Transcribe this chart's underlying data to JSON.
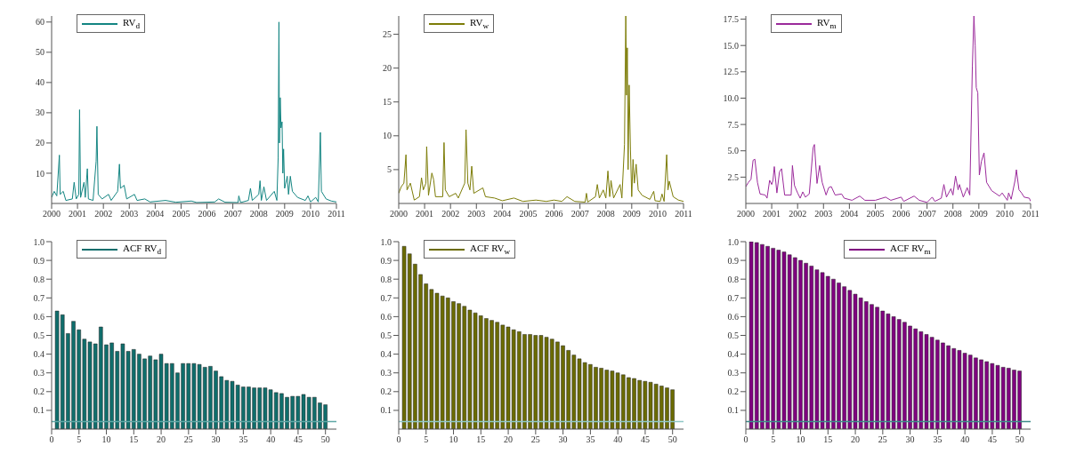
{
  "chart_data": [
    {
      "type": "line",
      "legend": "top left",
      "xlim": [
        2000,
        2011
      ],
      "xticks": [
        2000,
        2001,
        2002,
        2003,
        2004,
        2005,
        2006,
        2007,
        2008,
        2009,
        2010,
        2011
      ],
      "ylim": [
        0,
        62
      ],
      "yticks": [
        10,
        20,
        30,
        40,
        50,
        60
      ],
      "series": [
        {
          "name": "RV$_{d}$",
          "color": "#138582",
          "x": [
            2000.0,
            2000.1,
            2000.2,
            2000.3,
            2000.33,
            2000.45,
            2000.55,
            2000.8,
            2000.87,
            2000.95,
            2001.05,
            2001.08,
            2001.12,
            2001.25,
            2001.3,
            2001.38,
            2001.42,
            2001.6,
            2001.72,
            2001.75,
            2001.8,
            2001.95,
            2002.2,
            2002.3,
            2002.55,
            2002.62,
            2002.66,
            2002.8,
            2002.9,
            2003.2,
            2003.3,
            2003.6,
            2003.8,
            2004.4,
            2004.8,
            2005.4,
            2005.6,
            2006.3,
            2006.45,
            2006.7,
            2007.2,
            2007.23,
            2007.3,
            2007.6,
            2007.68,
            2007.75,
            2008.0,
            2008.05,
            2008.1,
            2008.2,
            2008.3,
            2008.6,
            2008.7,
            2008.75,
            2008.78,
            2008.8,
            2008.83,
            2008.86,
            2008.9,
            2008.93,
            2008.96,
            2009.0,
            2009.1,
            2009.15,
            2009.22,
            2009.3,
            2009.5,
            2009.8,
            2009.9,
            2010.0,
            2010.2,
            2010.3,
            2010.38,
            2010.42,
            2010.6,
            2010.8,
            2011.0
          ],
          "values": [
            2,
            4,
            2.5,
            16,
            3,
            4,
            1,
            1.5,
            7,
            1.5,
            3,
            31,
            2,
            7,
            2,
            11.5,
            1.5,
            1,
            14,
            25.5,
            3,
            1.5,
            3,
            1,
            4,
            13,
            5,
            6,
            1.5,
            3,
            1,
            1.5,
            0.5,
            1,
            0.4,
            0.8,
            0.3,
            0.5,
            1.5,
            0.4,
            0.3,
            2.5,
            0.3,
            1,
            5,
            1,
            3,
            7.5,
            1,
            5.5,
            1,
            4,
            1,
            15,
            60,
            20,
            35,
            25,
            27,
            10,
            18,
            5,
            9,
            3,
            9,
            4,
            2,
            1,
            2.5,
            0.5,
            2,
            0.5,
            23.5,
            4,
            1.5,
            0.8,
            0.5
          ]
        }
      ]
    },
    {
      "type": "line",
      "legend": "top left",
      "xlim": [
        2000,
        2011
      ],
      "xticks": [
        2000,
        2001,
        2002,
        2003,
        2004,
        2005,
        2006,
        2007,
        2008,
        2009,
        2010,
        2011
      ],
      "ylim": [
        0,
        27.7
      ],
      "yticks": [
        5,
        10,
        15,
        20,
        25
      ],
      "series": [
        {
          "name": "RV$_{w}$",
          "color": "#7d7d08",
          "x": [
            2000.0,
            2000.1,
            2000.2,
            2000.28,
            2000.32,
            2000.45,
            2000.6,
            2000.8,
            2000.88,
            2000.95,
            2001.05,
            2001.08,
            2001.15,
            2001.28,
            2001.35,
            2001.42,
            2001.7,
            2001.75,
            2001.8,
            2001.95,
            2002.2,
            2002.3,
            2002.55,
            2002.6,
            2002.67,
            2002.75,
            2002.82,
            2002.9,
            2003.25,
            2003.35,
            2003.7,
            2004.0,
            2004.45,
            2004.8,
            2005.3,
            2005.7,
            2006.0,
            2006.3,
            2006.5,
            2006.8,
            2007.2,
            2007.25,
            2007.3,
            2007.6,
            2007.67,
            2007.75,
            2007.9,
            2008.0,
            2008.08,
            2008.15,
            2008.2,
            2008.3,
            2008.55,
            2008.62,
            2008.72,
            2008.77,
            2008.8,
            2008.83,
            2008.86,
            2008.9,
            2008.95,
            2009.0,
            2009.05,
            2009.1,
            2009.17,
            2009.25,
            2009.4,
            2009.7,
            2009.85,
            2009.9,
            2010.1,
            2010.17,
            2010.25,
            2010.35,
            2010.4,
            2010.45,
            2010.6,
            2010.8,
            2011.0
          ],
          "values": [
            1.5,
            2.5,
            3,
            7.2,
            2,
            3,
            0.5,
            1,
            3.8,
            2,
            3,
            8.4,
            1.2,
            4.5,
            3.5,
            1,
            1,
            9,
            2,
            1,
            1.5,
            0.8,
            3,
            10.9,
            3,
            2,
            5.5,
            1.5,
            2.3,
            1,
            0.8,
            0.4,
            0.8,
            0.3,
            0.5,
            0.3,
            0.5,
            0.3,
            1,
            0.3,
            0.2,
            1.5,
            0.2,
            1,
            2.8,
            0.8,
            2,
            0.8,
            4.8,
            1,
            3.4,
            0.8,
            2.8,
            0.8,
            8.7,
            27.7,
            16,
            23,
            5,
            17.5,
            8,
            1,
            6.5,
            3,
            5.8,
            2,
            1.2,
            0.6,
            1.8,
            0.4,
            0.3,
            1.4,
            0.3,
            7.2,
            2,
            3.3,
            1,
            0.5,
            0.3
          ]
        }
      ]
    },
    {
      "type": "line",
      "legend": "top left",
      "xlim": [
        2000,
        2011
      ],
      "xticks": [
        2000,
        2001,
        2002,
        2003,
        2004,
        2005,
        2006,
        2007,
        2008,
        2009,
        2010,
        2011
      ],
      "ylim": [
        0,
        17.8
      ],
      "yticks": [
        2.5,
        {
          "value": 5,
          "label": "5.0"
        },
        7.5,
        {
          "value": 10,
          "label": "10.0"
        },
        12.5,
        {
          "value": 15,
          "label": "15.0"
        },
        17.5
      ],
      "series": [
        {
          "name": "RV$_{m}$",
          "color": "#9b2a9b",
          "x": [
            2000.0,
            2000.1,
            2000.2,
            2000.28,
            2000.35,
            2000.45,
            2000.55,
            2000.75,
            2000.82,
            2000.92,
            2001.0,
            2001.05,
            2001.1,
            2001.2,
            2001.3,
            2001.38,
            2001.5,
            2001.75,
            2001.8,
            2001.88,
            2002.0,
            2002.1,
            2002.2,
            2002.3,
            2002.45,
            2002.6,
            2002.65,
            2002.75,
            2002.85,
            2002.95,
            2003.1,
            2003.2,
            2003.3,
            2003.45,
            2003.7,
            2003.8,
            2004.1,
            2004.4,
            2004.6,
            2005.0,
            2005.4,
            2005.6,
            2006.0,
            2006.1,
            2006.5,
            2006.7,
            2007.0,
            2007.2,
            2007.3,
            2007.55,
            2007.65,
            2007.75,
            2007.92,
            2008.0,
            2008.1,
            2008.2,
            2008.25,
            2008.4,
            2008.55,
            2008.65,
            2008.75,
            2008.81,
            2008.86,
            2008.9,
            2008.96,
            2009.02,
            2009.1,
            2009.2,
            2009.3,
            2009.5,
            2009.8,
            2009.9,
            2010.1,
            2010.15,
            2010.25,
            2010.4,
            2010.45,
            2010.55,
            2010.65,
            2010.75,
            2010.95,
            2011.0
          ],
          "values": [
            1.6,
            2,
            2.3,
            4.1,
            4.2,
            2,
            0.9,
            0.8,
            0.5,
            2.2,
            1.8,
            2.2,
            3.5,
            1,
            3,
            3.3,
            0.8,
            0.8,
            3.6,
            1.7,
            1,
            0.5,
            1.1,
            0.6,
            0.9,
            5.3,
            5.6,
            1.9,
            3.6,
            2,
            0.8,
            1.5,
            1.6,
            0.8,
            0.9,
            0.5,
            0.3,
            0.7,
            0.3,
            0.3,
            0.6,
            0.3,
            0.6,
            0.2,
            0.7,
            0.3,
            0.1,
            0.6,
            0.2,
            0.5,
            1.8,
            0.6,
            1.4,
            0.8,
            2.6,
            1.3,
            1.8,
            0.6,
            1.5,
            0.8,
            13,
            17.8,
            15,
            11,
            10.5,
            2.7,
            4,
            4.8,
            2,
            1.2,
            0.7,
            1,
            0.3,
            1,
            0.4,
            2.2,
            3.2,
            1.3,
            1,
            0.6,
            0.5,
            0.2
          ]
        }
      ]
    },
    {
      "type": "bar",
      "legend": "top left",
      "xlim": [
        0,
        52
      ],
      "xticks": [
        0,
        5,
        10,
        15,
        20,
        25,
        30,
        35,
        40,
        45,
        50
      ],
      "ylim": [
        0,
        1
      ],
      "yticks": [
        0.1,
        0.2,
        0.3,
        0.4,
        0.5,
        0.6,
        0.7,
        0.8,
        0.9,
        {
          "value": 1,
          "label": "1.0"
        }
      ],
      "ref_lines": [
        {
          "axis": "y",
          "value": 0.04,
          "color": "#5fa8a6"
        }
      ],
      "series": [
        {
          "name": "ACF RV$_{d}$",
          "color": "#0f6e6c",
          "x": [
            1,
            2,
            3,
            4,
            5,
            6,
            7,
            8,
            9,
            10,
            11,
            12,
            13,
            14,
            15,
            16,
            17,
            18,
            19,
            20,
            21,
            22,
            23,
            24,
            25,
            26,
            27,
            28,
            29,
            30,
            31,
            32,
            33,
            34,
            35,
            36,
            37,
            38,
            39,
            40,
            41,
            42,
            43,
            44,
            45,
            46,
            47,
            48,
            49,
            50
          ],
          "values": [
            0.63,
            0.61,
            0.51,
            0.575,
            0.53,
            0.48,
            0.465,
            0.455,
            0.545,
            0.45,
            0.46,
            0.415,
            0.455,
            0.415,
            0.425,
            0.4,
            0.375,
            0.39,
            0.37,
            0.4,
            0.35,
            0.35,
            0.3,
            0.35,
            0.35,
            0.35,
            0.345,
            0.33,
            0.335,
            0.31,
            0.28,
            0.26,
            0.255,
            0.235,
            0.225,
            0.225,
            0.22,
            0.22,
            0.22,
            0.21,
            0.195,
            0.19,
            0.17,
            0.175,
            0.175,
            0.185,
            0.17,
            0.17,
            0.14,
            0.13
          ]
        }
      ]
    },
    {
      "type": "bar",
      "legend": "top left",
      "xlim": [
        0,
        52
      ],
      "xticks": [
        0,
        5,
        10,
        15,
        20,
        25,
        30,
        35,
        40,
        45,
        50
      ],
      "ylim": [
        0,
        1
      ],
      "yticks": [
        0.1,
        0.2,
        0.3,
        0.4,
        0.5,
        0.6,
        0.7,
        0.8,
        0.9,
        {
          "value": 1,
          "label": "1.0"
        }
      ],
      "ref_lines": [
        {
          "axis": "y",
          "value": 0.04,
          "color": "#8fc8c6"
        }
      ],
      "series": [
        {
          "name": "ACF RV$_{w}$",
          "color": "#6b6b00",
          "x": [
            1,
            2,
            3,
            4,
            5,
            6,
            7,
            8,
            9,
            10,
            11,
            12,
            13,
            14,
            15,
            16,
            17,
            18,
            19,
            20,
            21,
            22,
            23,
            24,
            25,
            26,
            27,
            28,
            29,
            30,
            31,
            32,
            33,
            34,
            35,
            36,
            37,
            38,
            39,
            40,
            41,
            42,
            43,
            44,
            45,
            46,
            47,
            48,
            49,
            50
          ],
          "values": [
            0.975,
            0.935,
            0.88,
            0.825,
            0.775,
            0.745,
            0.725,
            0.71,
            0.7,
            0.68,
            0.67,
            0.655,
            0.635,
            0.62,
            0.605,
            0.59,
            0.58,
            0.57,
            0.555,
            0.545,
            0.53,
            0.52,
            0.505,
            0.505,
            0.5,
            0.5,
            0.49,
            0.48,
            0.465,
            0.445,
            0.42,
            0.395,
            0.375,
            0.355,
            0.345,
            0.33,
            0.325,
            0.315,
            0.31,
            0.3,
            0.29,
            0.275,
            0.27,
            0.26,
            0.255,
            0.25,
            0.24,
            0.23,
            0.22,
            0.21
          ]
        }
      ]
    },
    {
      "type": "bar",
      "legend": "top",
      "xlim": [
        0,
        52
      ],
      "xticks": [
        0,
        5,
        10,
        15,
        20,
        25,
        30,
        35,
        40,
        45,
        50
      ],
      "ylim": [
        0,
        1
      ],
      "yticks": [
        0.1,
        0.2,
        0.3,
        0.4,
        0.5,
        0.6,
        0.7,
        0.8,
        0.9,
        {
          "value": 1,
          "label": "1.0"
        }
      ],
      "ref_lines": [
        {
          "axis": "y",
          "value": 0.04,
          "color": "#3e8c8a"
        }
      ],
      "series": [
        {
          "name": "ACF RV$_{m}$",
          "color": "#800080",
          "x": [
            1,
            2,
            3,
            4,
            5,
            6,
            7,
            8,
            9,
            10,
            11,
            12,
            13,
            14,
            15,
            16,
            17,
            18,
            19,
            20,
            21,
            22,
            23,
            24,
            25,
            26,
            27,
            28,
            29,
            30,
            31,
            32,
            33,
            34,
            35,
            36,
            37,
            38,
            39,
            40,
            41,
            42,
            43,
            44,
            45,
            46,
            47,
            48,
            49,
            50
          ],
          "values": [
            1.0,
            0.995,
            0.985,
            0.975,
            0.965,
            0.955,
            0.945,
            0.93,
            0.915,
            0.9,
            0.885,
            0.87,
            0.85,
            0.835,
            0.815,
            0.8,
            0.78,
            0.76,
            0.74,
            0.72,
            0.7,
            0.68,
            0.665,
            0.65,
            0.63,
            0.615,
            0.6,
            0.585,
            0.57,
            0.55,
            0.535,
            0.52,
            0.505,
            0.49,
            0.475,
            0.46,
            0.445,
            0.43,
            0.42,
            0.405,
            0.395,
            0.38,
            0.37,
            0.36,
            0.35,
            0.34,
            0.33,
            0.325,
            0.315,
            0.31
          ]
        }
      ]
    }
  ]
}
